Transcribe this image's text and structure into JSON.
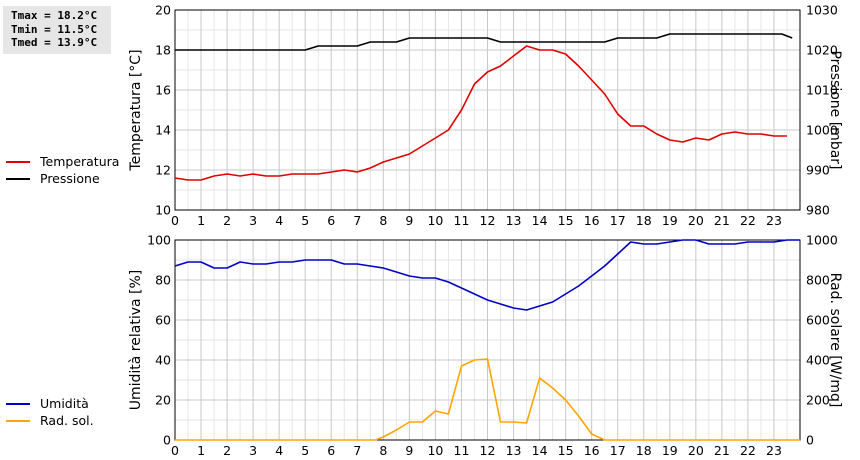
{
  "stats": {
    "tmax": "Tmax = 18.2°C",
    "tmin": "Tmin = 11.5°C",
    "tmed": "Tmed = 13.9°C"
  },
  "chart_data": [
    {
      "type": "line",
      "x_ticks": [
        "0",
        "1",
        "2",
        "3",
        "4",
        "5",
        "6",
        "7",
        "8",
        "9",
        "10",
        "11",
        "12",
        "13",
        "14",
        "15",
        "16",
        "17",
        "18",
        "19",
        "20",
        "21",
        "22",
        "23"
      ],
      "xlim": [
        0,
        24
      ],
      "ylabel_left": "Temperatura [°C]",
      "ylabel_right": "Pressione [mbar]",
      "ylim_left": [
        10,
        20
      ],
      "ylim_right": [
        980,
        1030
      ],
      "yticks_left": [
        "10",
        "12",
        "14",
        "16",
        "18",
        "20"
      ],
      "yticks_right": [
        "980",
        "990",
        "1000",
        "1010",
        "1020",
        "1030"
      ],
      "grid": true,
      "legend_position": "left",
      "series": [
        {
          "name": "Temperatura",
          "axis": "left",
          "color": "#e00000",
          "x": [
            0,
            0.5,
            1,
            1.5,
            2,
            2.5,
            3,
            3.5,
            4,
            4.5,
            5,
            5.5,
            6,
            6.5,
            7,
            7.5,
            8,
            8.5,
            9,
            9.5,
            10,
            10.5,
            11,
            11.5,
            12,
            12.5,
            13,
            13.5,
            14,
            14.5,
            15,
            15.5,
            16,
            16.5,
            17,
            17.5,
            18,
            18.5,
            19,
            19.5,
            20,
            20.5,
            21,
            21.5,
            22,
            22.5,
            23,
            23.5
          ],
          "values": [
            11.6,
            11.5,
            11.5,
            11.7,
            11.8,
            11.7,
            11.8,
            11.7,
            11.7,
            11.8,
            11.8,
            11.8,
            11.9,
            12.0,
            11.9,
            12.1,
            12.4,
            12.6,
            12.8,
            13.2,
            13.6,
            14.0,
            15.0,
            16.3,
            16.9,
            17.2,
            17.7,
            18.2,
            18.0,
            18.0,
            17.8,
            17.2,
            16.5,
            15.8,
            14.8,
            14.2,
            14.2,
            13.8,
            13.5,
            13.4,
            13.6,
            13.5,
            13.8,
            13.9,
            13.8,
            13.8,
            13.7,
            13.7
          ]
        },
        {
          "name": "Pressione",
          "axis": "right",
          "color": "#000000",
          "x": [
            0,
            5,
            5.5,
            7,
            7.5,
            8.5,
            9,
            12,
            12.5,
            16.5,
            17,
            18.5,
            19,
            23.3,
            23.7
          ],
          "values": [
            1020,
            1020,
            1021,
            1021,
            1022,
            1022,
            1023,
            1023,
            1022,
            1022,
            1023,
            1023,
            1024,
            1024,
            1023
          ]
        }
      ]
    },
    {
      "type": "line",
      "x_ticks": [
        "0",
        "1",
        "2",
        "3",
        "4",
        "5",
        "6",
        "7",
        "8",
        "9",
        "10",
        "11",
        "12",
        "13",
        "14",
        "15",
        "16",
        "17",
        "18",
        "19",
        "20",
        "21",
        "22",
        "23"
      ],
      "xlim": [
        0,
        24
      ],
      "ylabel_left": "Umidità relativa [%]",
      "ylabel_right": "Rad. solare [W/mq]",
      "ylim_left": [
        0,
        100
      ],
      "ylim_right": [
        0,
        1000
      ],
      "yticks_left": [
        "0",
        "20",
        "40",
        "60",
        "80",
        "100"
      ],
      "yticks_right": [
        "0",
        "200",
        "400",
        "600",
        "800",
        "1000"
      ],
      "grid": true,
      "legend_position": "left",
      "series": [
        {
          "name": "Umidità",
          "axis": "left",
          "color": "#0000c8",
          "x": [
            0,
            0.5,
            1,
            1.5,
            2,
            2.5,
            3,
            3.5,
            4,
            4.5,
            5,
            5.5,
            6,
            6.5,
            7,
            7.5,
            8,
            8.5,
            9,
            9.5,
            10,
            10.5,
            11,
            11.5,
            12,
            12.5,
            13,
            13.5,
            14,
            14.5,
            15,
            15.5,
            16,
            16.5,
            17,
            17.5,
            18,
            18.5,
            19,
            19.5,
            20,
            20.5,
            21,
            21.5,
            22,
            22.5,
            23,
            23.5,
            24
          ],
          "values": [
            87,
            89,
            89,
            86,
            86,
            89,
            88,
            88,
            89,
            89,
            90,
            90,
            90,
            88,
            88,
            87,
            86,
            84,
            82,
            81,
            81,
            79,
            76,
            73,
            70,
            68,
            66,
            65,
            67,
            69,
            73,
            77,
            82,
            87,
            93,
            99,
            98,
            98,
            99,
            100,
            100,
            98,
            98,
            98,
            99,
            99,
            99,
            100,
            100
          ]
        },
        {
          "name": "Rad. sol.",
          "axis": "right",
          "color": "#ffa500",
          "x": [
            0,
            7.7,
            8,
            8.5,
            9,
            9.5,
            10,
            10.5,
            11,
            11.5,
            12,
            12.5,
            13,
            13.5,
            14,
            14.5,
            15,
            15.5,
            16,
            16.5,
            24
          ],
          "values": [
            0,
            0,
            15,
            50,
            90,
            90,
            145,
            130,
            370,
            400,
            405,
            90,
            90,
            85,
            310,
            260,
            200,
            120,
            30,
            0,
            0
          ]
        }
      ]
    }
  ]
}
